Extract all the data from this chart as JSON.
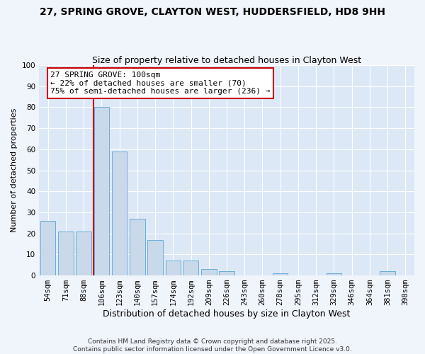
{
  "title1": "27, SPRING GROVE, CLAYTON WEST, HUDDERSFIELD, HD8 9HH",
  "title2": "Size of property relative to detached houses in Clayton West",
  "xlabel": "Distribution of detached houses by size in Clayton West",
  "ylabel": "Number of detached properties",
  "categories": [
    "54sqm",
    "71sqm",
    "88sqm",
    "106sqm",
    "123sqm",
    "140sqm",
    "157sqm",
    "174sqm",
    "192sqm",
    "209sqm",
    "226sqm",
    "243sqm",
    "260sqm",
    "278sqm",
    "295sqm",
    "312sqm",
    "329sqm",
    "346sqm",
    "364sqm",
    "381sqm",
    "398sqm"
  ],
  "values": [
    26,
    21,
    21,
    80,
    59,
    27,
    17,
    7,
    7,
    3,
    2,
    0,
    0,
    1,
    0,
    0,
    1,
    0,
    0,
    2,
    0
  ],
  "bar_color": "#c9d9ea",
  "bar_edge_color": "#6baed6",
  "red_line_x": 2.55,
  "annotation_text": "27 SPRING GROVE: 100sqm\n← 22% of detached houses are smaller (70)\n75% of semi-detached houses are larger (236) →",
  "annotation_box_facecolor": "#ffffff",
  "annotation_box_edgecolor": "#cc0000",
  "red_line_color": "#cc0000",
  "ylim": [
    0,
    100
  ],
  "yticks": [
    0,
    10,
    20,
    30,
    40,
    50,
    60,
    70,
    80,
    90,
    100
  ],
  "fig_bg_color": "#f0f4fb",
  "plot_bg_color": "#dce8f5",
  "footer": "Contains HM Land Registry data © Crown copyright and database right 2025.\nContains public sector information licensed under the Open Government Licence v3.0.",
  "title1_fontsize": 10,
  "title2_fontsize": 9,
  "xlabel_fontsize": 9,
  "ylabel_fontsize": 8,
  "tick_fontsize": 7.5,
  "annotation_fontsize": 8,
  "footer_fontsize": 6.5
}
